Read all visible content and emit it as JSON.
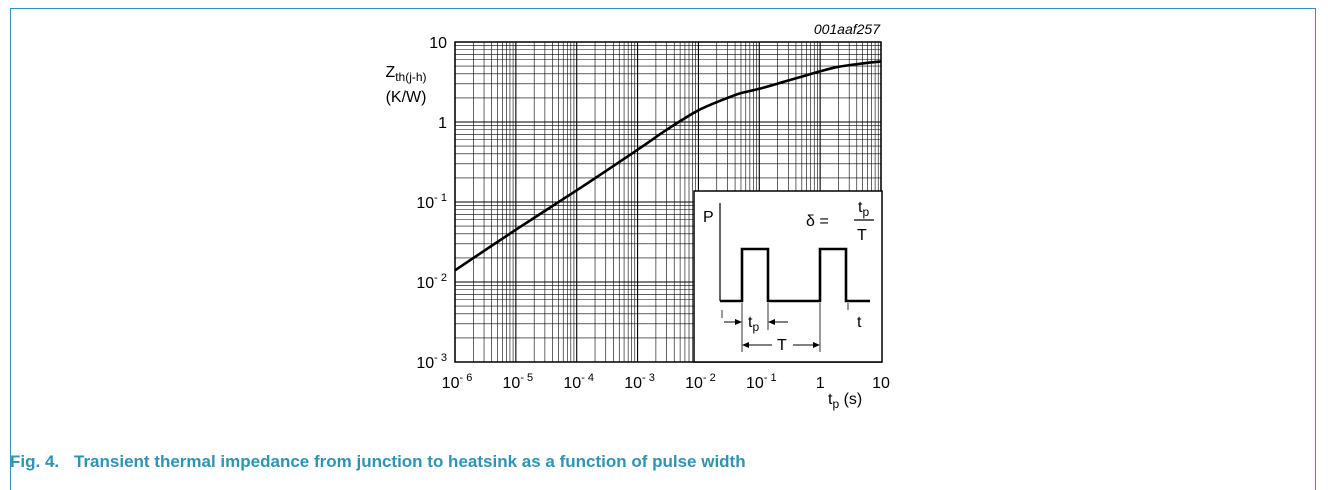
{
  "figure": {
    "code": "001aaf257",
    "caption_label": "Fig. 4.",
    "caption_text": "Transient thermal impedance from junction to heatsink as a function of pulse width"
  },
  "chart_data": {
    "type": "line",
    "x_scale": "log",
    "y_scale": "log",
    "xlim": [
      1e-06,
      10
    ],
    "ylim": [
      0.001,
      10
    ],
    "grid": true,
    "ylabel_main": "Z",
    "ylabel_sub": "th(j-h)",
    "ylabel_unit": "(K/W)",
    "xlabel_main": "t",
    "xlabel_sub": "p",
    "xlabel_unit": " (s)",
    "x_ticks": [
      {
        "value": 1e-06,
        "base": "10",
        "exp": "- 6"
      },
      {
        "value": 1e-05,
        "base": "10",
        "exp": "- 5"
      },
      {
        "value": 0.0001,
        "base": "10",
        "exp": "- 4"
      },
      {
        "value": 0.001,
        "base": "10",
        "exp": "- 3"
      },
      {
        "value": 0.01,
        "base": "10",
        "exp": "- 2"
      },
      {
        "value": 0.1,
        "base": "10",
        "exp": "- 1"
      },
      {
        "value": 1,
        "base": "1",
        "exp": ""
      },
      {
        "value": 10,
        "base": "10",
        "exp": ""
      }
    ],
    "y_ticks": [
      {
        "value": 10,
        "base": "10",
        "exp": ""
      },
      {
        "value": 1,
        "base": "1",
        "exp": ""
      },
      {
        "value": 0.1,
        "base": "10",
        "exp": "- 1"
      },
      {
        "value": 0.01,
        "base": "10",
        "exp": "- 2"
      },
      {
        "value": 0.001,
        "base": "10",
        "exp": "- 3"
      }
    ],
    "series": [
      {
        "x": [
          1e-06,
          1e-05,
          0.0001,
          0.001,
          0.003,
          0.01,
          0.03,
          0.05,
          0.1,
          0.3,
          1,
          2,
          5,
          10
        ],
        "y": [
          0.014,
          0.045,
          0.14,
          0.45,
          0.8,
          1.4,
          2.0,
          2.3,
          2.6,
          3.3,
          4.3,
          4.9,
          5.4,
          5.7
        ]
      }
    ],
    "inset": {
      "p_label": "P",
      "t_label": "t",
      "delta": "δ =",
      "frac_num_main": "t",
      "frac_num_sub": "p",
      "frac_den": "T",
      "tp_main": "t",
      "tp_sub": "p",
      "period_label": "T"
    }
  }
}
